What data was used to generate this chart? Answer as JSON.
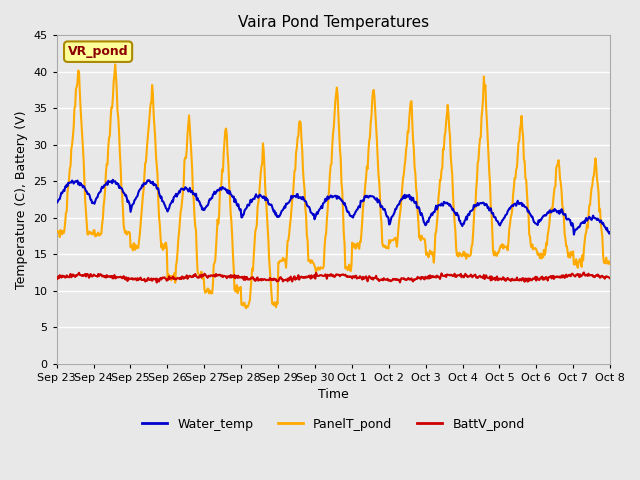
{
  "title": "Vaira Pond Temperatures",
  "xlabel": "Time",
  "ylabel": "Temperature (C), Battery (V)",
  "ylim": [
    0,
    45
  ],
  "yticks": [
    0,
    5,
    10,
    15,
    20,
    25,
    30,
    35,
    40,
    45
  ],
  "bg_color": "#e8e8e8",
  "plot_bg_color": "#e8e8e8",
  "grid_color": "white",
  "annotation_text": "VR_pond",
  "annotation_facecolor": "#ffff99",
  "annotation_edgecolor": "#aa8800",
  "annotation_textcolor": "#8b0000",
  "series": {
    "Water_temp": {
      "color": "#0000cc",
      "linewidth": 1.5
    },
    "PanelT_pond": {
      "color": "#ffaa00",
      "linewidth": 1.5
    },
    "BattV_pond": {
      "color": "#cc0000",
      "linewidth": 1.5
    }
  },
  "xtick_labels": [
    "Sep 23",
    "Sep 24",
    "Sep 25",
    "Sep 26",
    "Sep 27",
    "Sep 28",
    "Sep 29",
    "Sep 30",
    "Oct 1",
    "Oct 2",
    "Oct 3",
    "Oct 4",
    "Oct 5",
    "Oct 6",
    "Oct 7",
    "Oct 8"
  ],
  "x_positions": [
    0,
    1,
    2,
    3,
    4,
    5,
    6,
    7,
    8,
    9,
    10,
    11,
    12,
    13,
    14,
    15
  ]
}
